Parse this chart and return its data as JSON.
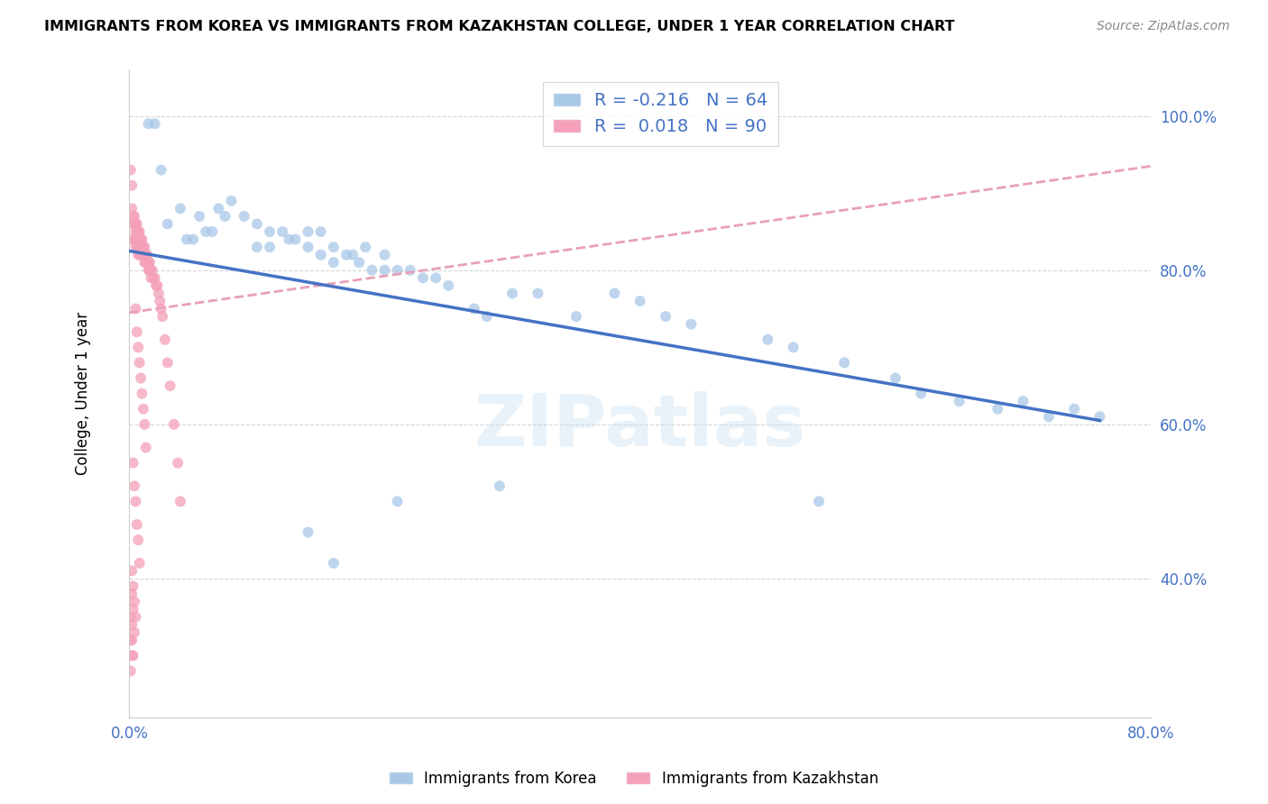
{
  "title": "IMMIGRANTS FROM KOREA VS IMMIGRANTS FROM KAZAKHSTAN COLLEGE, UNDER 1 YEAR CORRELATION CHART",
  "source": "Source: ZipAtlas.com",
  "ylabel": "College, Under 1 year",
  "legend_korea": "Immigrants from Korea",
  "legend_kazakhstan": "Immigrants from Kazakhstan",
  "korea_R": -0.216,
  "korea_N": 64,
  "kazakhstan_R": 0.018,
  "kazakhstan_N": 90,
  "xlim": [
    0.0,
    0.8
  ],
  "ylim": [
    0.22,
    1.06
  ],
  "yticks": [
    0.4,
    0.6,
    0.8,
    1.0
  ],
  "ytick_labels": [
    "40.0%",
    "60.0%",
    "80.0%",
    "100.0%"
  ],
  "xticks": [
    0.0,
    0.1,
    0.2,
    0.3,
    0.4,
    0.5,
    0.6,
    0.7,
    0.8
  ],
  "xtick_labels": [
    "0.0%",
    "",
    "",
    "",
    "",
    "",
    "",
    "",
    "80.0%"
  ],
  "color_korea": "#a8c8e8",
  "color_kazakhstan": "#f4a0b8",
  "color_korea_line": "#4472c4",
  "color_kazakhstan_line": "#e8a0b8",
  "watermark": "ZIPatlas",
  "korea_trend_x0": 0.0,
  "korea_trend_y0": 0.825,
  "korea_trend_x1": 0.76,
  "korea_trend_y1": 0.605,
  "kaz_trend_x0": 0.0,
  "kaz_trend_y0": 0.745,
  "kaz_trend_x1": 0.8,
  "kaz_trend_y1": 0.935,
  "korea_scatter_x": [
    0.015,
    0.02,
    0.025,
    0.03,
    0.04,
    0.045,
    0.05,
    0.055,
    0.06,
    0.065,
    0.07,
    0.075,
    0.08,
    0.09,
    0.1,
    0.1,
    0.11,
    0.11,
    0.12,
    0.125,
    0.13,
    0.14,
    0.14,
    0.15,
    0.15,
    0.16,
    0.16,
    0.17,
    0.175,
    0.18,
    0.185,
    0.19,
    0.2,
    0.2,
    0.21,
    0.22,
    0.23,
    0.24,
    0.25,
    0.27,
    0.28,
    0.3,
    0.32,
    0.35,
    0.38,
    0.4,
    0.42,
    0.44,
    0.5,
    0.52,
    0.54,
    0.56,
    0.6,
    0.62,
    0.65,
    0.68,
    0.7,
    0.72,
    0.74,
    0.76,
    0.14,
    0.16,
    0.21,
    0.29
  ],
  "korea_scatter_y": [
    0.99,
    0.99,
    0.93,
    0.86,
    0.88,
    0.84,
    0.84,
    0.87,
    0.85,
    0.85,
    0.88,
    0.87,
    0.89,
    0.87,
    0.86,
    0.83,
    0.85,
    0.83,
    0.85,
    0.84,
    0.84,
    0.85,
    0.83,
    0.85,
    0.82,
    0.83,
    0.81,
    0.82,
    0.82,
    0.81,
    0.83,
    0.8,
    0.8,
    0.82,
    0.8,
    0.8,
    0.79,
    0.79,
    0.78,
    0.75,
    0.74,
    0.77,
    0.77,
    0.74,
    0.77,
    0.76,
    0.74,
    0.73,
    0.71,
    0.7,
    0.5,
    0.68,
    0.66,
    0.64,
    0.63,
    0.62,
    0.63,
    0.61,
    0.62,
    0.61,
    0.46,
    0.42,
    0.5,
    0.52
  ],
  "kazakhstan_scatter_x": [
    0.001,
    0.002,
    0.002,
    0.003,
    0.003,
    0.003,
    0.004,
    0.004,
    0.004,
    0.005,
    0.005,
    0.005,
    0.005,
    0.006,
    0.006,
    0.006,
    0.006,
    0.007,
    0.007,
    0.007,
    0.007,
    0.008,
    0.008,
    0.008,
    0.008,
    0.009,
    0.009,
    0.009,
    0.01,
    0.01,
    0.01,
    0.011,
    0.011,
    0.012,
    0.012,
    0.012,
    0.013,
    0.013,
    0.014,
    0.014,
    0.015,
    0.015,
    0.016,
    0.016,
    0.017,
    0.017,
    0.018,
    0.019,
    0.02,
    0.021,
    0.022,
    0.023,
    0.024,
    0.025,
    0.026,
    0.028,
    0.03,
    0.032,
    0.035,
    0.038,
    0.04,
    0.005,
    0.006,
    0.007,
    0.008,
    0.009,
    0.01,
    0.011,
    0.012,
    0.013,
    0.003,
    0.004,
    0.005,
    0.006,
    0.007,
    0.008,
    0.002,
    0.003,
    0.004,
    0.005,
    0.002,
    0.003,
    0.004,
    0.002,
    0.003,
    0.002,
    0.001,
    0.002,
    0.001,
    0.001
  ],
  "kazakhstan_scatter_y": [
    0.93,
    0.91,
    0.88,
    0.87,
    0.86,
    0.84,
    0.87,
    0.86,
    0.84,
    0.86,
    0.85,
    0.84,
    0.83,
    0.86,
    0.85,
    0.84,
    0.83,
    0.85,
    0.84,
    0.83,
    0.82,
    0.85,
    0.84,
    0.83,
    0.82,
    0.84,
    0.83,
    0.82,
    0.84,
    0.83,
    0.82,
    0.83,
    0.82,
    0.83,
    0.82,
    0.81,
    0.82,
    0.81,
    0.82,
    0.81,
    0.81,
    0.8,
    0.81,
    0.8,
    0.8,
    0.79,
    0.8,
    0.79,
    0.79,
    0.78,
    0.78,
    0.77,
    0.76,
    0.75,
    0.74,
    0.71,
    0.68,
    0.65,
    0.6,
    0.55,
    0.5,
    0.75,
    0.72,
    0.7,
    0.68,
    0.66,
    0.64,
    0.62,
    0.6,
    0.57,
    0.55,
    0.52,
    0.5,
    0.47,
    0.45,
    0.42,
    0.41,
    0.39,
    0.37,
    0.35,
    0.38,
    0.36,
    0.33,
    0.32,
    0.3,
    0.34,
    0.32,
    0.3,
    0.28,
    0.35
  ]
}
